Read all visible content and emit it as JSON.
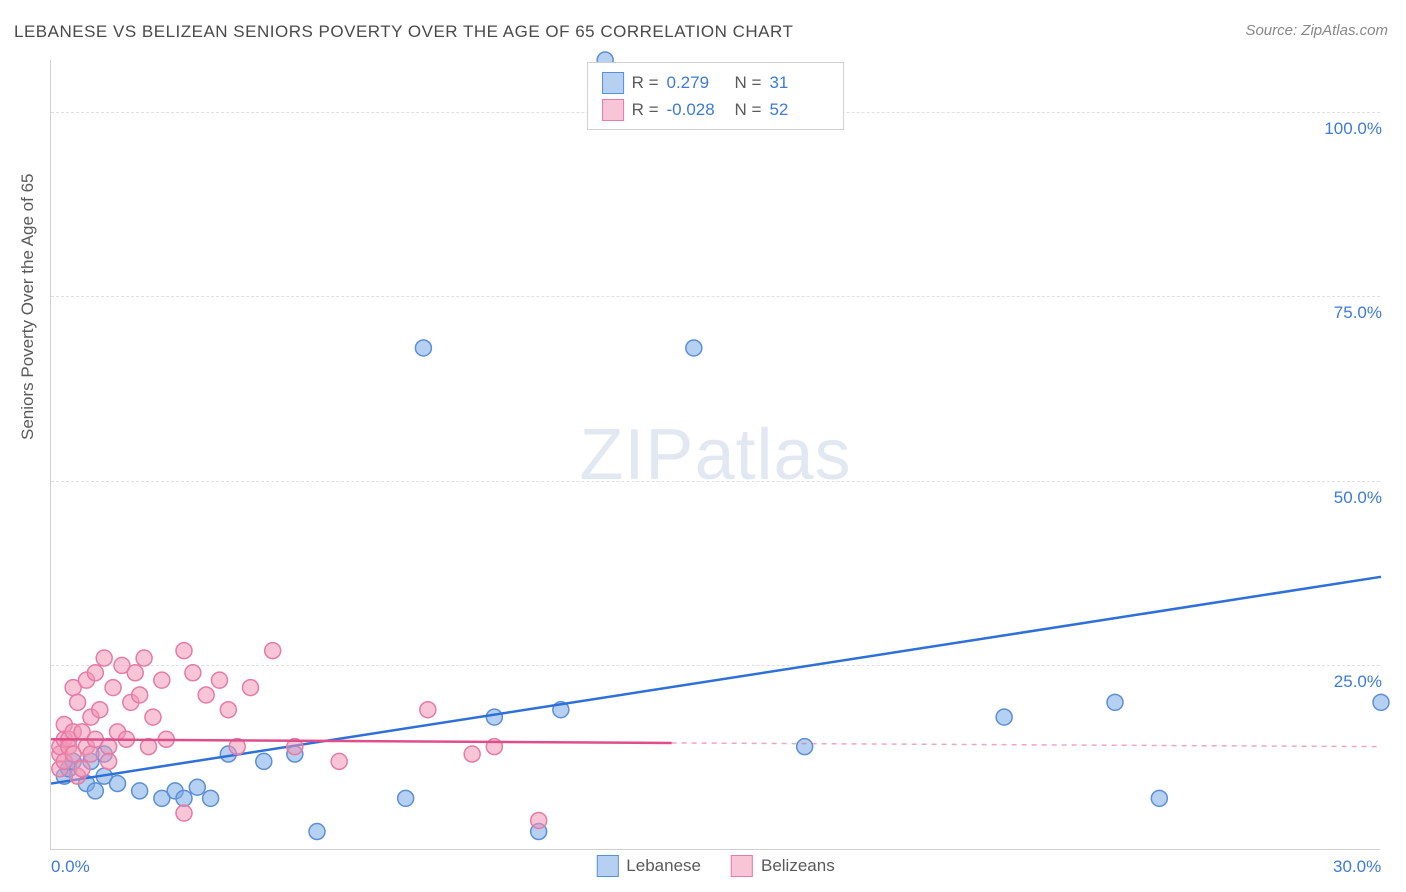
{
  "title": "LEBANESE VS BELIZEAN SENIORS POVERTY OVER THE AGE OF 65 CORRELATION CHART",
  "source": "Source: ZipAtlas.com",
  "ylabel": "Seniors Poverty Over the Age of 65",
  "watermark_zip": "ZIP",
  "watermark_atlas": "atlas",
  "chart": {
    "type": "scatter",
    "xlim": [
      0,
      30
    ],
    "ylim": [
      0,
      107
    ],
    "x_ticks": [
      {
        "v": 0,
        "label": "0.0%"
      },
      {
        "v": 30,
        "label": "30.0%"
      }
    ],
    "y_ticks": [
      {
        "v": 25,
        "label": "25.0%"
      },
      {
        "v": 50,
        "label": "50.0%"
      },
      {
        "v": 75,
        "label": "75.0%"
      },
      {
        "v": 100,
        "label": "100.0%"
      }
    ],
    "grid_color": "#e0e0e0",
    "background_color": "#ffffff",
    "axis_color": "#cfcfcf",
    "series": [
      {
        "name": "Lebanese",
        "marker_fill": "rgba(122,170,230,0.55)",
        "marker_stroke": "#5b8fd6",
        "line_color": "#2e6fd8",
        "marker_r": 8,
        "R": "0.279",
        "N": "31",
        "regression": {
          "x1": 0,
          "y1": 9,
          "x2": 30,
          "y2": 37
        },
        "points": [
          [
            0.3,
            10
          ],
          [
            0.4,
            11
          ],
          [
            0.5,
            12
          ],
          [
            0.8,
            9
          ],
          [
            0.9,
            12
          ],
          [
            1.0,
            8
          ],
          [
            1.2,
            10
          ],
          [
            1.5,
            9
          ],
          [
            1.2,
            13
          ],
          [
            2.0,
            8
          ],
          [
            2.5,
            7
          ],
          [
            2.8,
            8
          ],
          [
            3.0,
            7
          ],
          [
            3.3,
            8.5
          ],
          [
            3.6,
            7
          ],
          [
            4.0,
            13
          ],
          [
            4.8,
            12
          ],
          [
            5.5,
            13
          ],
          [
            6.0,
            2.5
          ],
          [
            8.0,
            7
          ],
          [
            8.4,
            68
          ],
          [
            10.0,
            18
          ],
          [
            11.0,
            2.5
          ],
          [
            11.5,
            19
          ],
          [
            12.5,
            107
          ],
          [
            14.5,
            68
          ],
          [
            17.0,
            14
          ],
          [
            21.5,
            18
          ],
          [
            24.0,
            20
          ],
          [
            25.0,
            7
          ],
          [
            30.0,
            20
          ]
        ]
      },
      {
        "name": "Belizeans",
        "marker_fill": "rgba(240,150,180,0.55)",
        "marker_stroke": "#e67ba5",
        "line_color": "#e04d8b",
        "marker_r": 8,
        "R": "-0.028",
        "N": "52",
        "regression": {
          "x1": 0,
          "y1": 15,
          "x2": 14,
          "y2": 14.5
        },
        "regression_dash": {
          "x1": 14,
          "y1": 14.5,
          "x2": 30,
          "y2": 14
        },
        "points": [
          [
            0.2,
            11
          ],
          [
            0.2,
            13
          ],
          [
            0.2,
            14
          ],
          [
            0.3,
            15
          ],
          [
            0.3,
            12
          ],
          [
            0.3,
            17
          ],
          [
            0.4,
            15
          ],
          [
            0.4,
            14
          ],
          [
            0.5,
            13
          ],
          [
            0.5,
            16
          ],
          [
            0.5,
            22
          ],
          [
            0.6,
            10
          ],
          [
            0.6,
            20
          ],
          [
            0.7,
            16
          ],
          [
            0.7,
            11
          ],
          [
            0.8,
            14
          ],
          [
            0.8,
            23
          ],
          [
            0.9,
            13
          ],
          [
            0.9,
            18
          ],
          [
            1.0,
            15
          ],
          [
            1.0,
            24
          ],
          [
            1.1,
            19
          ],
          [
            1.2,
            26
          ],
          [
            1.3,
            14
          ],
          [
            1.3,
            12
          ],
          [
            1.4,
            22
          ],
          [
            1.5,
            16
          ],
          [
            1.6,
            25
          ],
          [
            1.7,
            15
          ],
          [
            1.8,
            20
          ],
          [
            1.9,
            24
          ],
          [
            2.0,
            21
          ],
          [
            2.1,
            26
          ],
          [
            2.2,
            14
          ],
          [
            2.3,
            18
          ],
          [
            2.5,
            23
          ],
          [
            2.6,
            15
          ],
          [
            3.0,
            27
          ],
          [
            3.0,
            5
          ],
          [
            3.2,
            24
          ],
          [
            3.5,
            21
          ],
          [
            3.8,
            23
          ],
          [
            4.0,
            19
          ],
          [
            4.2,
            14
          ],
          [
            4.5,
            22
          ],
          [
            5.0,
            27
          ],
          [
            5.5,
            14
          ],
          [
            6.5,
            12
          ],
          [
            8.5,
            19
          ],
          [
            9.5,
            13
          ],
          [
            10.0,
            14
          ],
          [
            11.0,
            4
          ]
        ]
      }
    ],
    "legend_bottom": [
      {
        "label": "Lebanese",
        "fill": "rgba(122,170,230,0.55)",
        "stroke": "#5b8fd6"
      },
      {
        "label": "Belizeans",
        "fill": "rgba(240,150,180,0.55)",
        "stroke": "#e67ba5"
      }
    ],
    "legend_top_label_R": "R  =",
    "legend_top_label_N": "N  ="
  }
}
